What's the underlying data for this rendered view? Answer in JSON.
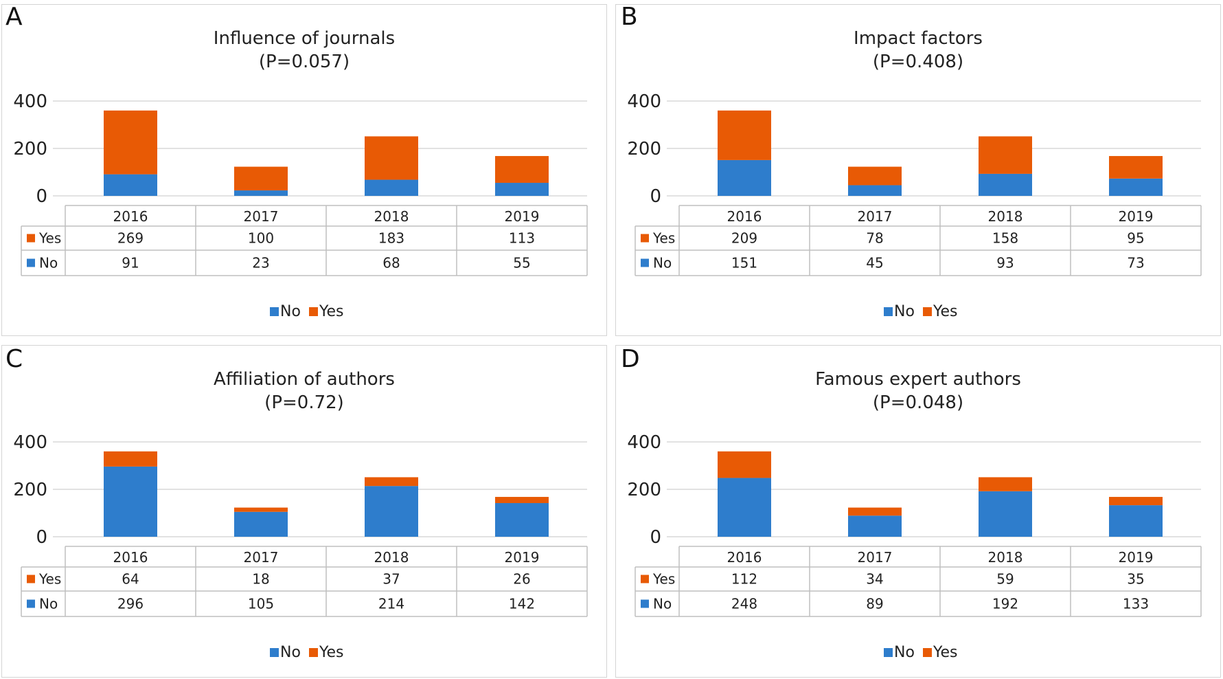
{
  "colors": {
    "no": "#2e7dcc",
    "yes": "#e85a05",
    "grid": "#d9d9d9",
    "table": "#bfbfbf"
  },
  "chart_data": [
    {
      "panel": "A",
      "type": "bar",
      "stacked": true,
      "title": "Influence of journals",
      "subtitle": "(P=0.057)",
      "categories": [
        "2016",
        "2017",
        "2018",
        "2019"
      ],
      "yticks": [
        "0",
        "200",
        "400"
      ],
      "ylim": [
        0,
        400
      ],
      "series": [
        {
          "name": "No",
          "values": [
            91,
            23,
            68,
            55
          ]
        },
        {
          "name": "Yes",
          "values": [
            269,
            100,
            183,
            113
          ]
        }
      ],
      "legend": [
        "No",
        "Yes"
      ]
    },
    {
      "panel": "B",
      "type": "bar",
      "stacked": true,
      "title": "Impact factors",
      "subtitle": "(P=0.408)",
      "categories": [
        "2016",
        "2017",
        "2018",
        "2019"
      ],
      "yticks": [
        "0",
        "200",
        "400"
      ],
      "ylim": [
        0,
        400
      ],
      "series": [
        {
          "name": "No",
          "values": [
            151,
            45,
            93,
            73
          ]
        },
        {
          "name": "Yes",
          "values": [
            209,
            78,
            158,
            95
          ]
        }
      ],
      "legend": [
        "No",
        "Yes"
      ]
    },
    {
      "panel": "C",
      "type": "bar",
      "stacked": true,
      "title": "Affiliation of authors",
      "subtitle": "(P=0.72)",
      "categories": [
        "2016",
        "2017",
        "2018",
        "2019"
      ],
      "yticks": [
        "0",
        "200",
        "400"
      ],
      "ylim": [
        0,
        400
      ],
      "series": [
        {
          "name": "No",
          "values": [
            296,
            105,
            214,
            142
          ]
        },
        {
          "name": "Yes",
          "values": [
            64,
            18,
            37,
            26
          ]
        }
      ],
      "legend": [
        "No",
        "Yes"
      ]
    },
    {
      "panel": "D",
      "type": "bar",
      "stacked": true,
      "title": "Famous expert authors",
      "subtitle": "(P=0.048)",
      "categories": [
        "2016",
        "2017",
        "2018",
        "2019"
      ],
      "yticks": [
        "0",
        "200",
        "400"
      ],
      "ylim": [
        0,
        400
      ],
      "series": [
        {
          "name": "No",
          "values": [
            248,
            89,
            192,
            133
          ]
        },
        {
          "name": "Yes",
          "values": [
            112,
            34,
            59,
            35
          ]
        }
      ],
      "legend": [
        "No",
        "Yes"
      ]
    }
  ]
}
